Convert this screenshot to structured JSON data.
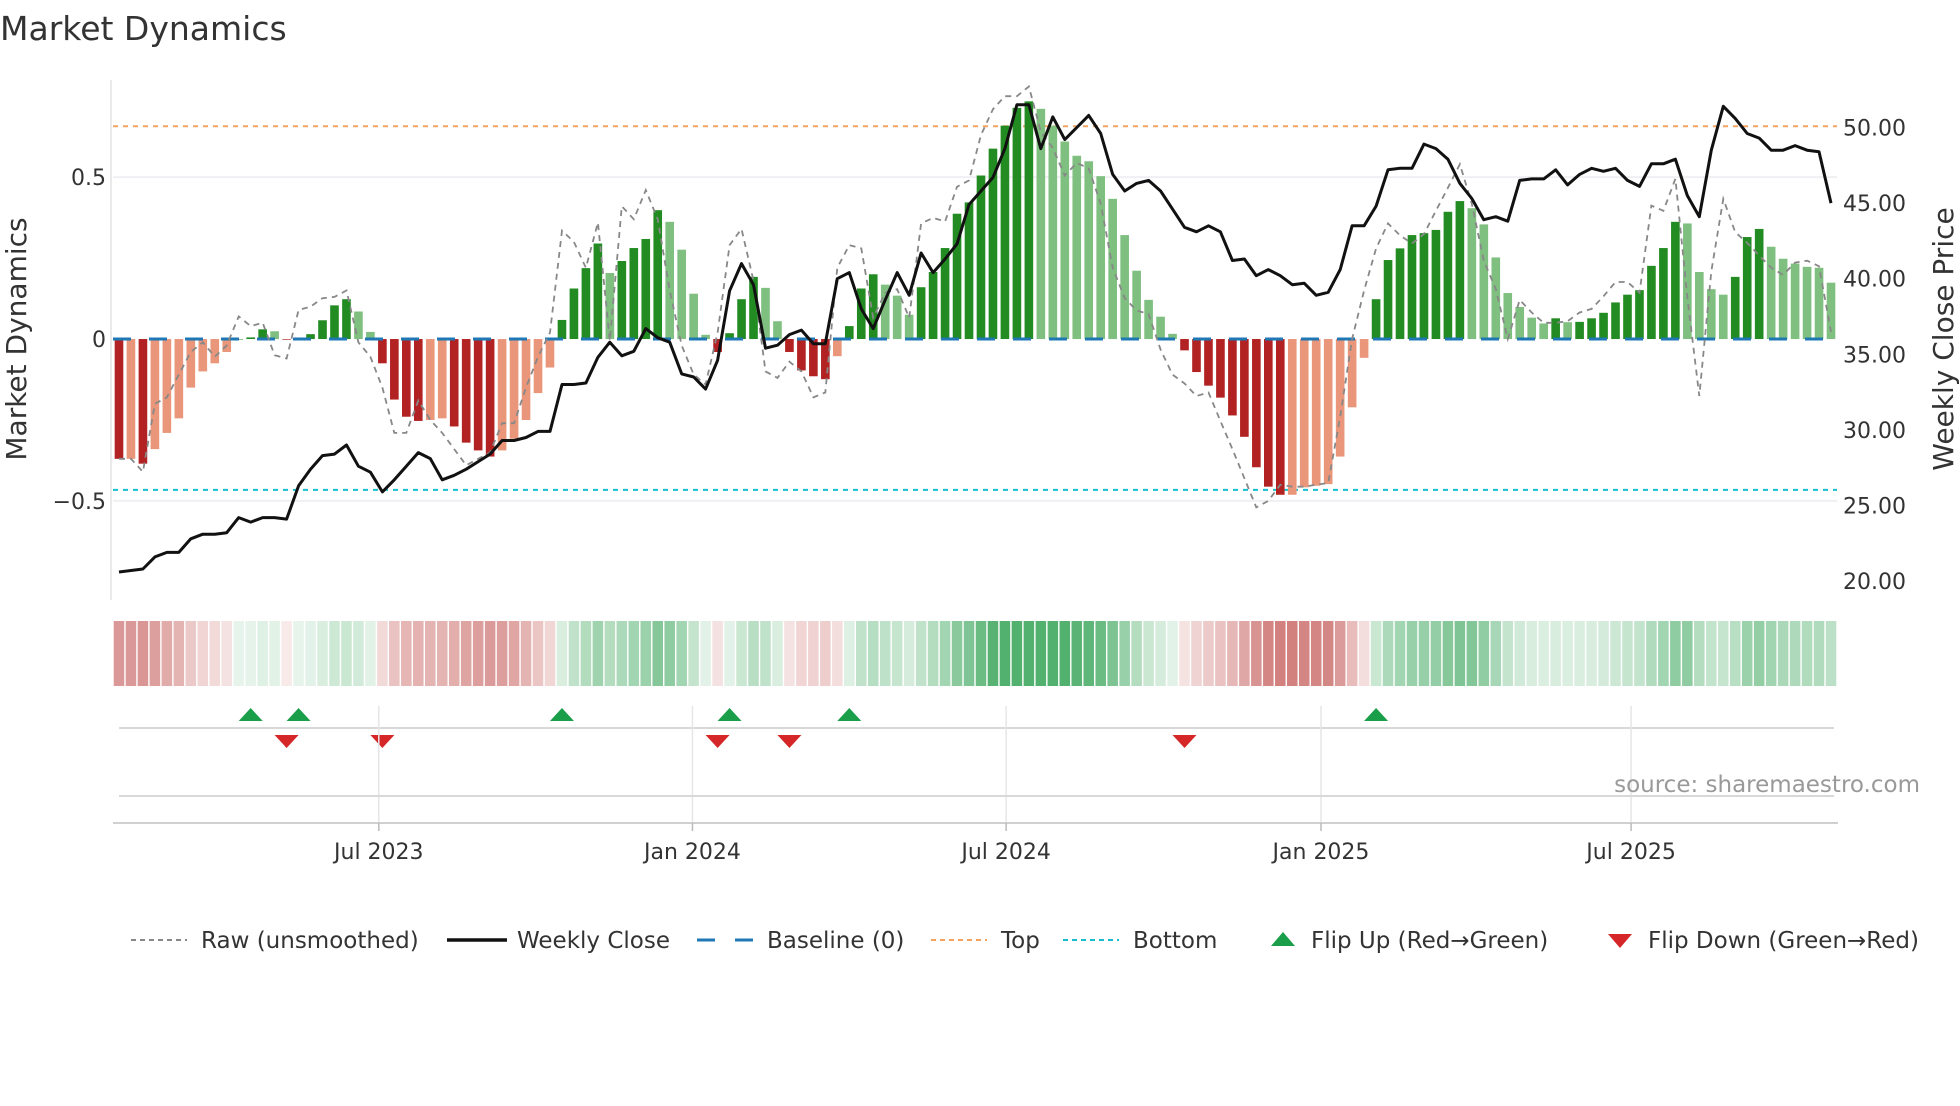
{
  "chart_data": {
    "type": "bar",
    "title": "Market Dynamics",
    "ylabel": "Market Dynamics",
    "ylabel_right": "Weekly Close Price",
    "ylim": [
      -0.806,
      0.8
    ],
    "ylim_right": [
      18.75,
      53.14
    ],
    "xlim": [
      -0.5,
      143.5
    ],
    "y_ticks": [
      {
        "value": 0.5,
        "label": "0.5"
      },
      {
        "value": 0,
        "label": "0"
      },
      {
        "value": -0.5,
        "label": "−0.5"
      }
    ],
    "y_ticks_right": [
      {
        "value": 50,
        "label": "50.00"
      },
      {
        "value": 45,
        "label": "45.00"
      },
      {
        "value": 40,
        "label": "40.00"
      },
      {
        "value": 35,
        "label": "35.00"
      },
      {
        "value": 30,
        "label": "30.00"
      },
      {
        "value": 25,
        "label": "25.00"
      },
      {
        "value": 20,
        "label": "20.00"
      }
    ],
    "x_ticks": [
      {
        "value": 21.7,
        "label": "Jul 2023"
      },
      {
        "value": 47.9,
        "label": "Jan 2024"
      },
      {
        "value": 74.1,
        "label": "Jul 2024"
      },
      {
        "value": 100.4,
        "label": "Jan 2025"
      },
      {
        "value": 126.3,
        "label": "Jul 2025"
      }
    ],
    "top": 0.657,
    "bottom": -0.466,
    "baseline": 0,
    "histogram": [
      -0.37,
      -0.37,
      -0.385,
      -0.34,
      -0.29,
      -0.245,
      -0.15,
      -0.1,
      -0.075,
      -0.04,
      0.0,
      0.005,
      0.03,
      0.024,
      -0.002,
      0.003,
      0.015,
      0.058,
      0.104,
      0.123,
      0.085,
      0.022,
      -0.075,
      -0.187,
      -0.24,
      -0.253,
      -0.25,
      -0.245,
      -0.27,
      -0.32,
      -0.344,
      -0.363,
      -0.344,
      -0.308,
      -0.25,
      -0.167,
      -0.088,
      0.059,
      0.156,
      0.219,
      0.295,
      0.204,
      0.241,
      0.281,
      0.309,
      0.398,
      0.362,
      0.276,
      0.14,
      0.013,
      -0.04,
      0.018,
      0.123,
      0.192,
      0.158,
      0.055,
      -0.04,
      -0.097,
      -0.115,
      -0.124,
      -0.053,
      0.04,
      0.156,
      0.2,
      0.168,
      0.134,
      0.075,
      0.16,
      0.207,
      0.281,
      0.387,
      0.422,
      0.505,
      0.588,
      0.659,
      0.714,
      0.734,
      0.711,
      0.659,
      0.61,
      0.566,
      0.549,
      0.503,
      0.433,
      0.321,
      0.211,
      0.121,
      0.069,
      0.016,
      -0.035,
      -0.102,
      -0.144,
      -0.181,
      -0.236,
      -0.302,
      -0.396,
      -0.456,
      -0.481,
      -0.481,
      -0.458,
      -0.453,
      -0.448,
      -0.363,
      -0.211,
      -0.058,
      0.123,
      0.244,
      0.28,
      0.321,
      0.327,
      0.337,
      0.393,
      0.426,
      0.404,
      0.354,
      0.252,
      0.142,
      0.099,
      0.066,
      0.048,
      0.064,
      0.052,
      0.053,
      0.064,
      0.081,
      0.113,
      0.137,
      0.151,
      0.226,
      0.281,
      0.362,
      0.357,
      0.207,
      0.154,
      0.137,
      0.192,
      0.315,
      0.34,
      0.285,
      0.248,
      0.233,
      0.223,
      0.22,
      0.174
    ],
    "raw": [
      -0.37,
      -0.37,
      -0.41,
      -0.2,
      -0.18,
      -0.11,
      -0.04,
      -0.01,
      -0.055,
      -0.02,
      0.07,
      0.04,
      0.05,
      -0.05,
      -0.06,
      0.09,
      0.1,
      0.126,
      0.13,
      0.15,
      -0.01,
      -0.055,
      -0.15,
      -0.29,
      -0.29,
      -0.19,
      -0.25,
      -0.29,
      -0.34,
      -0.39,
      -0.37,
      -0.35,
      -0.26,
      -0.26,
      -0.15,
      -0.055,
      0.02,
      0.335,
      0.3,
      0.22,
      0.36,
      -0.005,
      0.41,
      0.37,
      0.46,
      0.37,
      0.15,
      -0.02,
      -0.11,
      -0.14,
      0.02,
      0.29,
      0.34,
      0.18,
      -0.1,
      -0.12,
      -0.07,
      -0.1,
      -0.18,
      -0.165,
      0.22,
      0.29,
      0.28,
      0.066,
      0.143,
      0.154,
      0.066,
      0.357,
      0.374,
      0.363,
      0.47,
      0.49,
      0.63,
      0.71,
      0.75,
      0.75,
      0.78,
      0.64,
      0.59,
      0.505,
      0.544,
      0.527,
      0.418,
      0.22,
      0.126,
      0.088,
      0.077,
      -0.033,
      -0.11,
      -0.137,
      -0.176,
      -0.165,
      -0.253,
      -0.34,
      -0.43,
      -0.52,
      -0.5,
      -0.45,
      -0.456,
      -0.456,
      -0.45,
      -0.445,
      -0.24,
      0.0,
      0.15,
      0.28,
      0.357,
      0.32,
      0.295,
      0.324,
      0.396,
      0.467,
      0.54,
      0.418,
      0.242,
      0.154,
      0.0,
      0.121,
      0.082,
      0.05,
      0.05,
      0.055,
      0.082,
      0.093,
      0.132,
      0.176,
      0.176,
      0.143,
      0.412,
      0.396,
      0.495,
      0.13,
      -0.176,
      0.209,
      0.433,
      0.33,
      0.297,
      0.258,
      0.22,
      0.198,
      0.236,
      0.242,
      0.225,
      0.022
    ],
    "close": [
      20.6,
      20.7,
      20.8,
      21.6,
      21.9,
      21.9,
      22.8,
      23.1,
      23.1,
      23.2,
      24.2,
      23.9,
      24.2,
      24.2,
      24.1,
      26.3,
      27.4,
      28.3,
      28.4,
      29.0,
      27.6,
      27.2,
      25.9,
      26.7,
      27.6,
      28.5,
      28.1,
      26.7,
      27.0,
      27.4,
      27.9,
      28.4,
      29.3,
      29.3,
      29.5,
      29.9,
      29.9,
      33.0,
      33.0,
      33.1,
      34.8,
      35.8,
      34.9,
      35.2,
      36.7,
      36.1,
      35.8,
      33.7,
      33.5,
      32.7,
      34.6,
      39.2,
      41.0,
      39.6,
      35.4,
      35.6,
      36.3,
      36.6,
      35.7,
      35.7,
      40.0,
      40.4,
      38.0,
      36.7,
      38.6,
      40.4,
      38.9,
      41.7,
      40.4,
      41.3,
      42.3,
      44.9,
      45.8,
      46.7,
      48.6,
      51.5,
      51.5,
      48.6,
      50.7,
      49.2,
      50.0,
      50.8,
      49.6,
      46.9,
      45.8,
      46.3,
      46.5,
      45.8,
      44.6,
      43.4,
      43.1,
      43.5,
      43.1,
      41.2,
      41.3,
      40.2,
      40.6,
      40.2,
      39.6,
      39.7,
      38.9,
      39.1,
      40.6,
      43.5,
      43.5,
      44.8,
      47.2,
      47.3,
      47.3,
      48.9,
      48.6,
      47.9,
      46.3,
      45.3,
      43.9,
      44.1,
      43.8,
      46.5,
      46.6,
      46.6,
      47.2,
      46.2,
      46.9,
      47.3,
      47.1,
      47.3,
      46.5,
      46.1,
      47.6,
      47.6,
      47.9,
      45.5,
      44.1,
      48.5,
      51.4,
      50.6,
      49.6,
      49.3,
      48.5,
      48.5,
      48.8,
      48.5,
      48.4,
      45.0
    ],
    "flip_up": [
      11,
      15,
      37,
      51,
      61,
      105
    ],
    "flip_down": [
      14,
      22,
      50,
      56,
      89
    ],
    "colors": {
      "pos_strong": "#228b22",
      "pos_weak": "#7fbf7f",
      "neg_strong": "#b22222",
      "neg_weak": "#e9967a",
      "close": "#111111",
      "raw": "#888888",
      "baseline": "#1f77b4",
      "top": "#f4a460",
      "bottom": "#17becf",
      "flip_up": "#1a9e4a",
      "flip_down": "#d62728"
    },
    "legend": [
      {
        "key": "raw",
        "label": "Raw (unsmoothed)"
      },
      {
        "key": "close",
        "label": "Weekly Close"
      },
      {
        "key": "baseline",
        "label": "Baseline (0)"
      },
      {
        "key": "top",
        "label": "Top"
      },
      {
        "key": "bottom",
        "label": "Bottom"
      },
      {
        "key": "flip_up",
        "label": "Flip Up (Red→Green)"
      },
      {
        "key": "flip_down",
        "label": "Flip Down (Green→Red)"
      }
    ],
    "source": "source: sharemaestro.com"
  }
}
